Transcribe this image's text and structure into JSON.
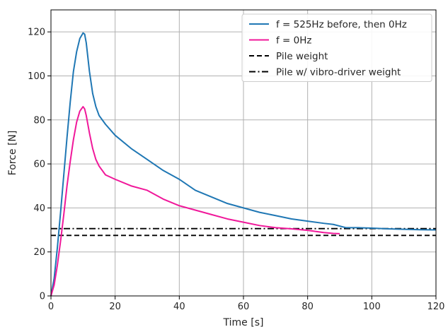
{
  "chart_data": {
    "type": "line",
    "title": "",
    "xlabel": "Time [s]",
    "ylabel": "Force [N]",
    "xlim": [
      0,
      120
    ],
    "ylim": [
      0,
      130
    ],
    "xticks": [
      0,
      20,
      40,
      60,
      80,
      100,
      120
    ],
    "yticks": [
      0,
      20,
      40,
      60,
      80,
      100,
      120
    ],
    "grid": true,
    "legend_position": "top-right",
    "series": [
      {
        "name": "f = 525Hz before, then 0Hz",
        "color": "#1f77b4",
        "style": "solid",
        "x": [
          0,
          1,
          2,
          3,
          4,
          5,
          6,
          7,
          8,
          9,
          10,
          10.5,
          11,
          12,
          13,
          14,
          15,
          17,
          20,
          25,
          30,
          35,
          40,
          45,
          50,
          55,
          60,
          65,
          70,
          75,
          80,
          85,
          88,
          92,
          96,
          100,
          105,
          110,
          115,
          120
        ],
        "y": [
          0,
          8,
          22,
          38,
          55,
          72,
          88,
          102,
          111,
          117,
          119.5,
          119,
          115,
          102,
          92,
          86,
          82,
          78,
          73,
          67,
          62,
          57,
          53,
          48,
          45,
          42,
          40,
          38,
          36.5,
          35,
          34,
          33,
          32.5,
          31,
          31,
          30.8,
          30.5,
          30.3,
          30.1,
          30
        ]
      },
      {
        "name": "f = 0Hz",
        "color": "#f0189a",
        "style": "solid",
        "x": [
          0,
          1,
          2,
          3,
          4,
          5,
          6,
          7,
          8,
          9,
          10,
          10.5,
          11,
          12,
          13,
          14,
          15,
          17,
          20,
          25,
          30,
          35,
          40,
          45,
          50,
          55,
          60,
          65,
          70,
          75,
          80,
          85,
          88,
          90
        ],
        "y": [
          0,
          5,
          14,
          25,
          37,
          50,
          61,
          71,
          79,
          84,
          86,
          85,
          82,
          74,
          67,
          62,
          59,
          55,
          53,
          50,
          48,
          44,
          41,
          39,
          37,
          35,
          33.5,
          32,
          31,
          30.5,
          29.8,
          28.8,
          28.4,
          28.3
        ]
      },
      {
        "name": "Pile weight",
        "color": "#000000",
        "style": "dashed",
        "x": [
          0,
          120
        ],
        "y": [
          27.5,
          27.5
        ]
      },
      {
        "name": "Pile w/ vibro-driver weight",
        "color": "#000000",
        "style": "dashdot",
        "x": [
          0,
          120
        ],
        "y": [
          30.6,
          30.6
        ]
      }
    ]
  }
}
